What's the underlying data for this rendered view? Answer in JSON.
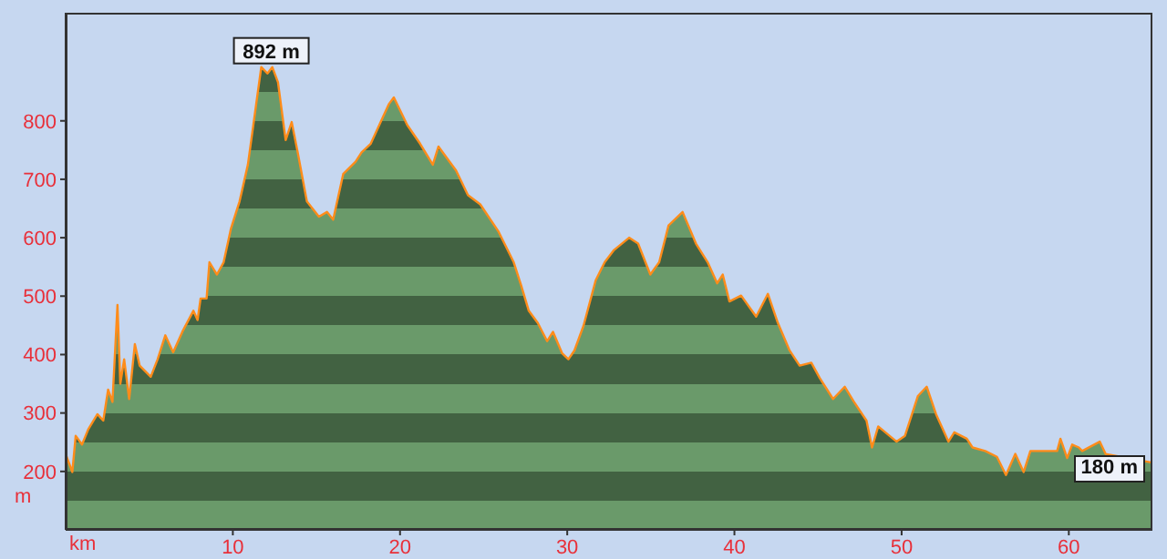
{
  "chart_data": {
    "type": "area",
    "xlabel": "km",
    "ylabel": "m",
    "x": [
      0,
      0.4,
      0.6,
      0.98,
      1.35,
      1.9,
      2.25,
      2.54,
      2.8,
      3.1,
      3.27,
      3.5,
      3.8,
      4.14,
      4.43,
      5.09,
      5.5,
      5.96,
      6.43,
      6.98,
      7.64,
      7.89,
      8.07,
      8.43,
      8.6,
      9.05,
      9.45,
      9.89,
      10.4,
      10.9,
      11.7,
      12.07,
      12.36,
      12.7,
      13.16,
      13.52,
      13.88,
      14.43,
      15.15,
      15.63,
      16,
      16.6,
      17.34,
      17.7,
      18.25,
      19.34,
      19.63,
      20.43,
      21.2,
      21.96,
      22.3,
      23.35,
      24.06,
      24.8,
      25.9,
      26.8,
      27.26,
      27.7,
      28.24,
      28.8,
      29.15,
      29.7,
      30.07,
      30.43,
      30.97,
      31.7,
      32.24,
      32.8,
      33.7,
      34.24,
      34.97,
      35.5,
      36.06,
      36.9,
      37.7,
      38.4,
      38.97,
      39.3,
      39.7,
      40.4,
      41.3,
      42,
      42.6,
      43.3,
      43.9,
      44.6,
      45.1,
      45.9,
      46.6,
      47.15,
      47.9,
      48.23,
      48.6,
      49.7,
      50.2,
      50.97,
      51.5,
      52.06,
      52.8,
      53.15,
      53.9,
      54.24,
      55,
      55.7,
      56.24,
      56.8,
      57.3,
      57.7,
      59.3,
      59.5,
      59.9,
      60.2,
      60.6,
      60.8,
      61.85,
      62.2,
      65
    ],
    "series": [
      {
        "color": "#ff8c1a",
        "values": [
          230,
          199,
          261,
          246,
          272,
          298,
          287,
          340,
          319,
          485,
          350,
          392,
          324,
          418,
          381,
          362,
          392,
          433,
          404,
          439,
          475,
          459,
          496,
          496,
          558,
          537,
          558,
          616,
          662,
          725,
          892,
          881,
          892,
          866,
          767,
          798,
          746,
          662,
          636,
          644,
          631,
          709,
          730,
          746,
          761,
          829,
          840,
          793,
          761,
          725,
          756,
          715,
          673,
          657,
          610,
          558,
          517,
          475,
          454,
          423,
          439,
          402,
          392,
          407,
          449,
          527,
          558,
          579,
          600,
          590,
          537,
          558,
          621,
          644,
          590,
          558,
          522,
          537,
          491,
          501,
          465,
          504,
          454,
          407,
          381,
          386,
          360,
          324,
          345,
          319,
          287,
          241,
          277,
          251,
          261,
          329,
          345,
          298,
          251,
          267,
          256,
          241,
          235,
          225,
          194,
          230,
          199,
          235,
          235,
          256,
          223,
          246,
          241,
          235,
          251,
          230,
          215
        ]
      }
    ],
    "xlim": [
      0,
      65
    ],
    "xticks": [
      10,
      20,
      30,
      40,
      50,
      60
    ],
    "ylim": [
      100,
      985
    ],
    "yticks": [
      200,
      300,
      400,
      500,
      600,
      700,
      800
    ],
    "annotations": [
      {
        "text": "892 m",
        "x": 12.3,
        "y": 892
      },
      "180 m"
    ]
  }
}
